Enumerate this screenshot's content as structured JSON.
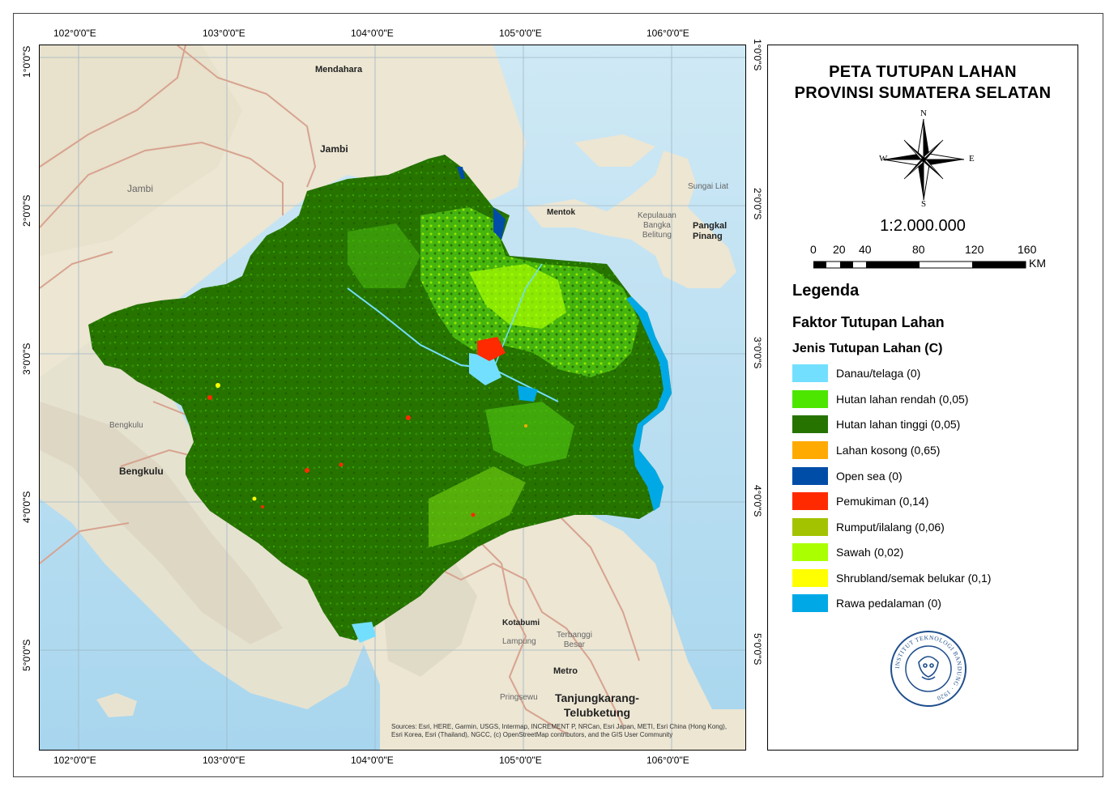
{
  "title": {
    "line1": "PETA TUTUPAN LAHAN",
    "line2": "PROVINSI SUMATERA SELATAN"
  },
  "compass": {
    "n": "N",
    "s": "S",
    "e": "E",
    "w": "W"
  },
  "scale_text": "1:2.000.000",
  "scalebar": {
    "labels": [
      "0",
      "20",
      "40",
      "80",
      "120",
      "160"
    ],
    "unit": "KM"
  },
  "legend": {
    "heading": "Legenda",
    "subheading": "Faktor Tutupan Lahan",
    "group": "Jenis Tutupan Lahan (C)",
    "items": [
      {
        "label": "Danau/telaga (0)",
        "color": "#73dfff"
      },
      {
        "label": "Hutan lahan rendah (0,05)",
        "color": "#4ce600"
      },
      {
        "label": "Hutan lahan tinggi (0,05)",
        "color": "#267300"
      },
      {
        "label": "Lahan kosong (0,65)",
        "color": "#ffaa00"
      },
      {
        "label": "Open sea (0)",
        "color": "#004da8"
      },
      {
        "label": "Pemukiman (0,14)",
        "color": "#ff2a00"
      },
      {
        "label": "Rumput/ilalang (0,06)",
        "color": "#a3c300"
      },
      {
        "label": "Sawah (0,02)",
        "color": "#aaff00"
      },
      {
        "label": "Shrubland/semak belukar (0,1)",
        "color": "#ffff00"
      },
      {
        "label": "Rawa pedalaman (0)",
        "color": "#00a9e6"
      }
    ]
  },
  "coords": {
    "lon": [
      "102°0'0\"E",
      "103°0'0\"E",
      "104°0'0\"E",
      "105°0'0\"E",
      "106°0'0\"E"
    ],
    "lat": [
      "1°0'0\"S",
      "2°0'0\"S",
      "3°0'0\"S",
      "4°0'0\"S",
      "5°0'0\"S"
    ]
  },
  "places": {
    "mendahara": "Mendahara",
    "jambi_city": "Jambi",
    "jambi_prov": "Jambi",
    "mentok": "Mentok",
    "sungai_liat": "Sungai Liat",
    "kepulauan": "Kepulauan\nBangka\nBelitung",
    "pangkal": "Pangkal\nPinang",
    "bengkulu_prov": "Bengkulu",
    "bengkulu_city": "Bengkulu",
    "kotabumi": "Kotabumi",
    "lampung": "Lampung",
    "terbanggi": "Terbanggi\nBesar",
    "metro": "Metro",
    "pringsewu": "Pringsewu",
    "tanjung": "Tanjungkarang-\nTelubketung"
  },
  "credits": "Sources: Esri, HERE, Garmin, USGS, Intermap, INCREMENT P, NRCan, Esri Japan, METI, Esri China (Hong Kong), Esri Korea, Esri (Thailand), NGCC, (c) OpenStreetMap contributors, and the GIS User Community",
  "logo_text": "INSTITUT TEKNOLOGI BANDUNG · 1920"
}
